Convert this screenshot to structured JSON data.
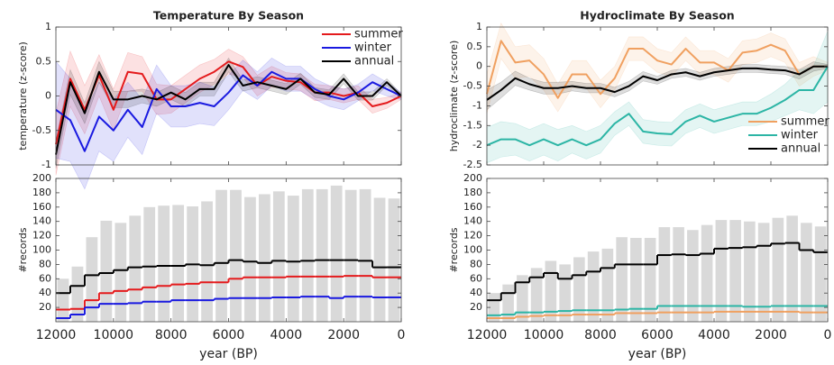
{
  "chart_data": [
    {
      "type": "line",
      "title": "Temperature By Season",
      "y_label": "temperature (z-score)",
      "x": [
        12000,
        11500,
        11000,
        10500,
        10000,
        9500,
        9000,
        8500,
        8000,
        7500,
        7000,
        6500,
        6000,
        5500,
        5000,
        4500,
        4000,
        3500,
        3000,
        2500,
        2000,
        1500,
        1000,
        500,
        0
      ],
      "xlim": [
        12000,
        0
      ],
      "xticks": [
        12000,
        10000,
        8000,
        6000,
        4000,
        2000,
        0
      ],
      "ylim": [
        -1,
        1
      ],
      "yticks": [
        -1,
        -0.5,
        0,
        0.5,
        1
      ],
      "legend": "upper right",
      "series": [
        {
          "name": "summer",
          "color": "#e41a1c",
          "values": [
            -0.7,
            0.25,
            -0.2,
            0.3,
            -0.2,
            0.35,
            0.32,
            -0.05,
            -0.05,
            0.1,
            0.25,
            0.35,
            0.5,
            0.42,
            0.15,
            0.28,
            0.22,
            0.2,
            0.05,
            0.05,
            0,
            0.05,
            -0.15,
            -0.1,
            0
          ],
          "errors": [
            0.45,
            0.4,
            0.35,
            0.3,
            0.3,
            0.28,
            0.25,
            0.22,
            0.2,
            0.2,
            0.2,
            0.18,
            0.18,
            0.15,
            0.15,
            0.15,
            0.12,
            0.12,
            0.12,
            0.1,
            0.1,
            0.1,
            0.1,
            0.08,
            0.05
          ]
        },
        {
          "name": "winter",
          "color": "#1a1ae0",
          "values": [
            -0.2,
            -0.35,
            -0.8,
            -0.3,
            -0.5,
            -0.2,
            -0.45,
            0.1,
            -0.15,
            -0.15,
            -0.1,
            -0.15,
            0.05,
            0.3,
            0.15,
            0.35,
            0.25,
            0.25,
            0.1,
            0,
            -0.05,
            0.05,
            0.2,
            0.1,
            0
          ],
          "errors": [
            0.7,
            0.6,
            0.55,
            0.5,
            0.45,
            0.4,
            0.4,
            0.35,
            0.3,
            0.3,
            0.3,
            0.28,
            0.25,
            0.22,
            0.2,
            0.2,
            0.18,
            0.18,
            0.15,
            0.15,
            0.15,
            0.12,
            0.12,
            0.1,
            0.05
          ]
        },
        {
          "name": "annual",
          "color": "#000000",
          "values": [
            -0.85,
            0.2,
            -0.25,
            0.35,
            -0.05,
            -0.05,
            0,
            -0.05,
            0.05,
            -0.05,
            0.1,
            0.1,
            0.45,
            0.15,
            0.2,
            0.15,
            0.1,
            0.25,
            0.05,
            0.02,
            0.25,
            0,
            0,
            0.2,
            0
          ],
          "errors": [
            0.2,
            0.18,
            0.15,
            0.15,
            0.12,
            0.12,
            0.1,
            0.1,
            0.1,
            0.1,
            0.1,
            0.1,
            0.1,
            0.08,
            0.08,
            0.08,
            0.08,
            0.08,
            0.07,
            0.07,
            0.07,
            0.06,
            0.06,
            0.05,
            0.03
          ]
        }
      ]
    },
    {
      "type": "histogram",
      "y_label": "#records",
      "x_label": "year (BP)",
      "bins": [
        12000,
        11500,
        11000,
        10500,
        10000,
        9500,
        9000,
        8500,
        8000,
        7500,
        7000,
        6500,
        6000,
        5500,
        5000,
        4500,
        4000,
        3500,
        3000,
        2500,
        2000,
        1500,
        1000,
        500,
        0
      ],
      "values": [
        60,
        77,
        118,
        141,
        138,
        148,
        160,
        162,
        163,
        161,
        168,
        184,
        184,
        174,
        178,
        182,
        176,
        185,
        185,
        190,
        184,
        185,
        173,
        172
      ],
      "color": "#d9d9d9",
      "xlim": [
        12000,
        0
      ],
      "xticks": [
        12000,
        10000,
        8000,
        6000,
        4000,
        2000,
        0
      ],
      "ylim": [
        0,
        200
      ],
      "yticks": [
        20,
        40,
        60,
        80,
        100,
        120,
        140,
        160,
        180,
        200
      ],
      "series": [
        {
          "color": "#e41a1c",
          "values": [
            17,
            18,
            30,
            40,
            43,
            45,
            48,
            50,
            52,
            53,
            55,
            55,
            60,
            62,
            62,
            62,
            63,
            63,
            63,
            63,
            64,
            64,
            62,
            62
          ]
        },
        {
          "color": "#1a1ae0",
          "values": [
            5,
            10,
            20,
            25,
            25,
            26,
            28,
            28,
            30,
            30,
            30,
            32,
            33,
            33,
            33,
            34,
            34,
            35,
            35,
            33,
            35,
            35,
            34,
            34
          ]
        },
        {
          "color": "#000000",
          "values": [
            40,
            50,
            65,
            68,
            72,
            76,
            77,
            78,
            78,
            80,
            79,
            82,
            86,
            84,
            82,
            85,
            84,
            85,
            86,
            86,
            86,
            85,
            76,
            76
          ]
        }
      ]
    },
    {
      "type": "line",
      "title": "Hydroclimate By Season",
      "y_label": "hydroclimate (z-score)",
      "x": [
        12000,
        11500,
        11000,
        10500,
        10000,
        9500,
        9000,
        8500,
        8000,
        7500,
        7000,
        6500,
        6000,
        5500,
        5000,
        4500,
        4000,
        3500,
        3000,
        2500,
        2000,
        1500,
        1000,
        500,
        0
      ],
      "xlim": [
        12000,
        0
      ],
      "xticks": [
        12000,
        10000,
        8000,
        6000,
        4000,
        2000,
        0
      ],
      "ylim": [
        -2.5,
        1
      ],
      "yticks": [
        -2.5,
        -2,
        -1.5,
        -1,
        -0.5,
        0,
        0.5,
        1
      ],
      "legend": "lower right",
      "series": [
        {
          "name": "summer",
          "color": "#f0a060",
          "values": [
            -0.7,
            0.65,
            0.1,
            0.15,
            -0.2,
            -0.8,
            -0.2,
            -0.2,
            -0.7,
            -0.3,
            0.45,
            0.45,
            0.15,
            0.05,
            0.45,
            0.1,
            0.1,
            -0.1,
            0.35,
            0.4,
            0.55,
            0.4,
            -0.2,
            0,
            0
          ],
          "errors": [
            0.5,
            0.45,
            0.4,
            0.4,
            0.4,
            0.35,
            0.35,
            0.35,
            0.35,
            0.3,
            0.3,
            0.3,
            0.3,
            0.3,
            0.3,
            0.3,
            0.3,
            0.3,
            0.3,
            0.3,
            0.3,
            0.3,
            0.3,
            0.25,
            0.1
          ]
        },
        {
          "name": "winter",
          "color": "#2cb5a5",
          "values": [
            -2,
            -1.85,
            -1.85,
            -2,
            -1.85,
            -2,
            -1.85,
            -2,
            -1.85,
            -1.45,
            -1.2,
            -1.65,
            -1.7,
            -1.72,
            -1.4,
            -1.25,
            -1.4,
            -1.3,
            -1.2,
            -1.2,
            -1.05,
            -0.85,
            -0.6,
            -0.6,
            0
          ],
          "errors": [
            0.45,
            0.45,
            0.4,
            0.4,
            0.4,
            0.4,
            0.35,
            0.35,
            0.35,
            0.3,
            0.3,
            0.3,
            0.3,
            0.3,
            0.3,
            0.3,
            0.3,
            0.3,
            0.3,
            0.3,
            0.35,
            0.4,
            0.5,
            0.6,
            0.9
          ]
        },
        {
          "name": "annual",
          "color": "#000000",
          "values": [
            -0.85,
            -0.6,
            -0.3,
            -0.45,
            -0.55,
            -0.55,
            -0.5,
            -0.55,
            -0.55,
            -0.65,
            -0.5,
            -0.25,
            -0.35,
            -0.2,
            -0.15,
            -0.25,
            -0.15,
            -0.1,
            -0.05,
            -0.05,
            -0.08,
            -0.1,
            -0.2,
            0,
            0
          ],
          "errors": [
            0.25,
            0.2,
            0.18,
            0.15,
            0.15,
            0.15,
            0.12,
            0.12,
            0.12,
            0.12,
            0.12,
            0.12,
            0.1,
            0.1,
            0.1,
            0.1,
            0.1,
            0.1,
            0.1,
            0.1,
            0.1,
            0.1,
            0.12,
            0.12,
            0.05
          ]
        }
      ]
    },
    {
      "type": "histogram",
      "y_label": "#records",
      "x_label": "year (BP)",
      "bins": [
        12000,
        11500,
        11000,
        10500,
        10000,
        9500,
        9000,
        8500,
        8000,
        7500,
        7000,
        6500,
        6000,
        5500,
        5000,
        4500,
        4000,
        3500,
        3000,
        2500,
        2000,
        1500,
        1000,
        500,
        0
      ],
      "values": [
        40,
        52,
        65,
        75,
        85,
        80,
        90,
        98,
        102,
        118,
        117,
        117,
        132,
        132,
        128,
        135,
        142,
        142,
        140,
        138,
        145,
        148,
        138,
        133
      ],
      "color": "#d9d9d9",
      "xlim": [
        12000,
        0
      ],
      "xticks": [
        12000,
        10000,
        8000,
        6000,
        4000,
        2000,
        0
      ],
      "ylim": [
        0,
        200
      ],
      "yticks": [
        20,
        40,
        60,
        80,
        100,
        120,
        140,
        160,
        180,
        200
      ],
      "series": [
        {
          "color": "#f0a060",
          "values": [
            5,
            5,
            7,
            8,
            9,
            9,
            10,
            10,
            10,
            12,
            12,
            12,
            13,
            13,
            13,
            13,
            14,
            14,
            14,
            14,
            14,
            14,
            13,
            13
          ]
        },
        {
          "color": "#2cb5a5",
          "values": [
            9,
            10,
            13,
            13,
            14,
            15,
            16,
            16,
            16,
            17,
            18,
            18,
            22,
            22,
            22,
            22,
            22,
            22,
            21,
            21,
            22,
            22,
            22,
            22
          ]
        },
        {
          "color": "#000000",
          "values": [
            30,
            40,
            55,
            62,
            68,
            60,
            65,
            70,
            75,
            80,
            80,
            80,
            93,
            94,
            93,
            95,
            102,
            103,
            104,
            106,
            109,
            110,
            100,
            97
          ]
        }
      ]
    }
  ]
}
